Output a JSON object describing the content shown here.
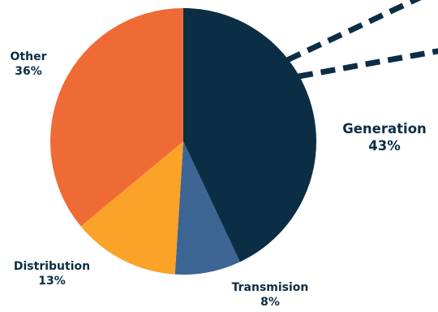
{
  "chart_data": {
    "type": "pie",
    "title": "",
    "slices": [
      {
        "label": "Generation",
        "percent_label": "43%",
        "value": 43,
        "color": "#0c2e45"
      },
      {
        "label": "Transmision",
        "percent_label": "8%",
        "value": 8,
        "color": "#3d6593"
      },
      {
        "label": "Distribution",
        "percent_label": "13%",
        "value": 13,
        "color": "#fba228"
      },
      {
        "label": "Other",
        "percent_label": "36%",
        "value": 36,
        "color": "#ef6b35"
      }
    ],
    "callout": {
      "style": "dashed",
      "color": "#0c2e45",
      "attached_to": "Generation"
    },
    "legend": "none"
  }
}
